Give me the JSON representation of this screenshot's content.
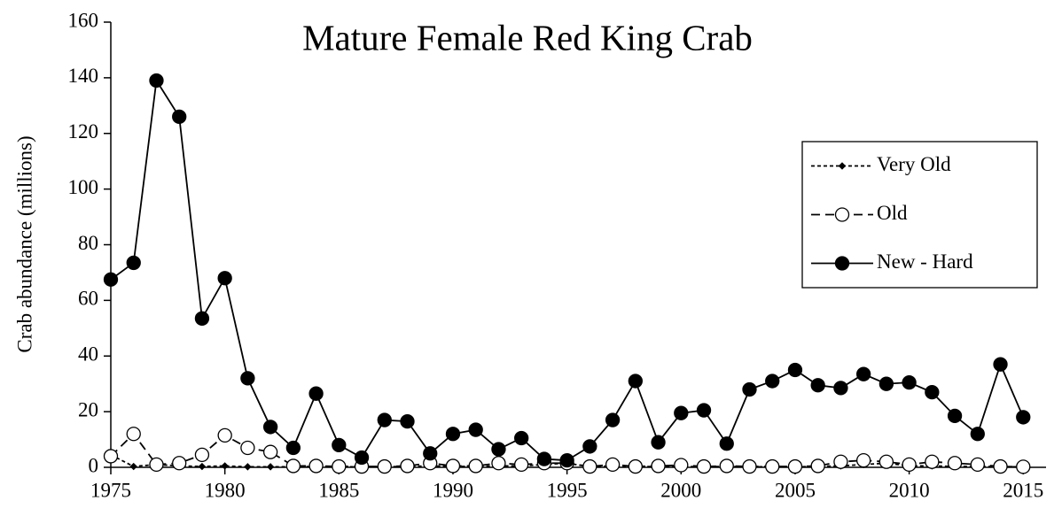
{
  "chart_data": {
    "type": "line",
    "title": "Mature Female Red King Crab",
    "y_label": "Crab abundance (millions)",
    "x": [
      1975,
      1976,
      1977,
      1978,
      1979,
      1980,
      1981,
      1982,
      1983,
      1984,
      1985,
      1986,
      1987,
      1988,
      1989,
      1990,
      1991,
      1992,
      1993,
      1994,
      1995,
      1996,
      1997,
      1998,
      1999,
      2000,
      2001,
      2002,
      2003,
      2004,
      2005,
      2006,
      2007,
      2008,
      2009,
      2010,
      2011,
      2012,
      2013,
      2014,
      2015
    ],
    "series": [
      {
        "name": "Very Old",
        "color": "#000000",
        "dash": "4,3",
        "marker": "diamond",
        "values": [
          4.5,
          0.3,
          1,
          0.5,
          0.3,
          0.5,
          0.2,
          0.2,
          0.2,
          0.3,
          0.2,
          0.2,
          0.2,
          0.3,
          0.5,
          0.3,
          0.3,
          0.5,
          0.5,
          1,
          1.5,
          0.2,
          0.5,
          0.2,
          0.3,
          0.3,
          0.2,
          0.3,
          0.2,
          0.2,
          0.2,
          0.3,
          0.5,
          1,
          1.5,
          0.5,
          0.5,
          0.3,
          0.3,
          0.2,
          0.2
        ]
      },
      {
        "name": "Old",
        "color": "#000000",
        "dash": "10,6",
        "marker": "open-circle",
        "values": [
          4,
          12,
          1,
          1.5,
          4.5,
          11.5,
          7,
          5.5,
          0.5,
          0.5,
          0.3,
          0.3,
          0.3,
          0.5,
          1.5,
          0.5,
          0.5,
          1.5,
          1,
          1.5,
          1.5,
          0.3,
          1,
          0.3,
          0.5,
          0.8,
          0.3,
          0.5,
          0.3,
          0.3,
          0.3,
          0.5,
          2,
          2.5,
          2,
          1,
          2,
          1.5,
          1,
          0.3,
          0.2
        ]
      },
      {
        "name": "New - Hard",
        "color": "#000000",
        "dash": "none",
        "marker": "filled-circle",
        "values": [
          67.5,
          73.5,
          139,
          126,
          53.5,
          68,
          32,
          14.5,
          7,
          26.5,
          8,
          3.5,
          17,
          16.5,
          5,
          12,
          13.5,
          6.5,
          10.5,
          3,
          2.5,
          7.5,
          17,
          31,
          9,
          19.5,
          20.5,
          8.5,
          28,
          31,
          35,
          29.5,
          28.5,
          33.5,
          30,
          30.5,
          27,
          18.5,
          12,
          37,
          18
        ]
      }
    ],
    "xlim": [
      1975,
      2016
    ],
    "xticks": [
      1975,
      1980,
      1985,
      1990,
      1995,
      2000,
      2005,
      2010,
      2015
    ],
    "ylim": [
      0,
      160
    ],
    "yticks": [
      0,
      20,
      40,
      60,
      80,
      100,
      120,
      140,
      160
    ],
    "grid": false,
    "legend": "right"
  }
}
